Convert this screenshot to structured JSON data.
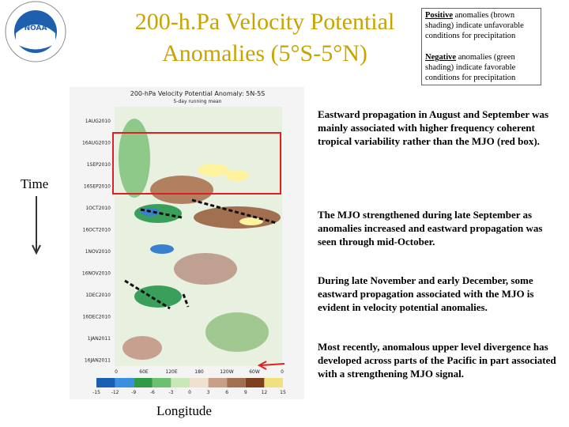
{
  "header": {
    "title_lines": [
      "200-h.Pa Velocity Potential",
      "Anomalies (5°S-5°N)"
    ]
  },
  "legend_box": {
    "positive": {
      "keyword": "Positive",
      "text": " anomalies (brown shading) indicate unfavorable conditions for precipitation"
    },
    "negative": {
      "keyword": "Negative",
      "text": " anomalies (green shading) indicate favorable conditions for precipitation"
    }
  },
  "figure": {
    "title": "200-hPa Velocity Potential Anomaly: 5N-5S",
    "subtitle": "5-day running mean",
    "y_labels": [
      "1AUG2010",
      "16AUG2010",
      "1SEP2010",
      "16SEP2010",
      "1OCT2010",
      "16OCT2010",
      "1NOV2010",
      "16NOV2010",
      "1DEC2010",
      "16DEC2010",
      "1JAN2011",
      "16JAN2011"
    ],
    "x_labels": [
      "0",
      "60E",
      "120E",
      "180",
      "120W",
      "60W",
      "0"
    ],
    "colorbar_labels": [
      "-15",
      "-12",
      "-9",
      "-6",
      "-3",
      "0",
      "3",
      "6",
      "9",
      "12",
      "15"
    ]
  },
  "axes": {
    "time": "Time",
    "longitude": "Longitude"
  },
  "notes": [
    "Eastward propagation in August and September was mainly associated with higher frequency coherent tropical variability rather than the MJO (red box).",
    "The MJO strengthened during late September as anomalies increased and eastward propagation was seen through mid-October.",
    "During late November and early December, some eastward propagation associated with the MJO is evident in velocity potential anomalies.",
    "Most recently, anomalous upper level divergence has developed across parts of the Pacific in part associated with a strengthening MJO signal."
  ]
}
